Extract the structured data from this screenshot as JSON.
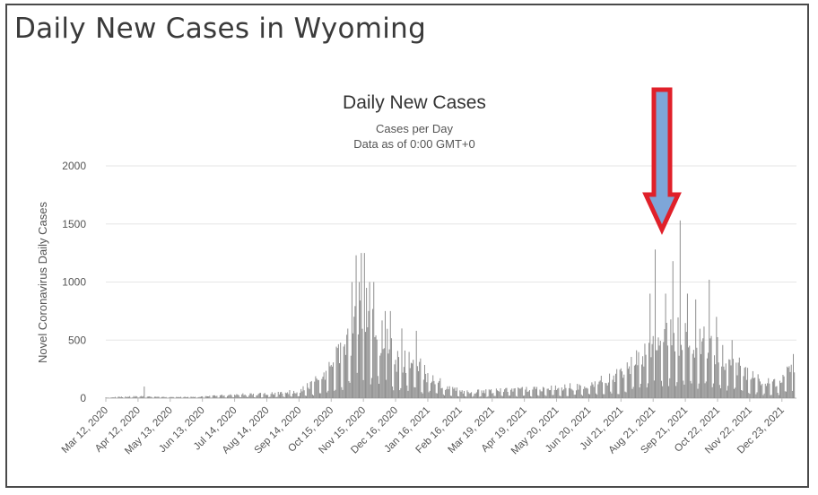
{
  "page": {
    "title": "Daily New Cases in Wyoming"
  },
  "chart_data": {
    "type": "bar",
    "title": "Daily New Cases",
    "subtitle_lines": [
      "Cases per Day",
      "Data as of 0:00 GMT+0"
    ],
    "ylabel": "Novel Coronavirus Daily Cases",
    "xlabel": "",
    "ylim": [
      0,
      2000
    ],
    "yticks": [
      0,
      500,
      1000,
      1500,
      2000
    ],
    "grid": true,
    "legend": "none",
    "bar_color": "#8c8c8c",
    "arrow_fill": "#7ea6d8",
    "arrow_stroke": "#e0202a",
    "x_tick_labels": [
      "Mar 12, 2020",
      "Apr 12, 2020",
      "May 13, 2020",
      "Jun 13, 2020",
      "Jul 14, 2020",
      "Aug 14, 2020",
      "Sep 14, 2020",
      "Oct 15, 2020",
      "Nov 15, 2020",
      "Dec 16, 2020",
      "Jan 16, 2021",
      "Feb 16, 2021",
      "Mar 19, 2021",
      "Apr 19, 2021",
      "May 20, 2021",
      "Jun 20, 2021",
      "Jul 21, 2021",
      "Aug 21, 2021",
      "Sep 21, 2021",
      "Oct 22, 2021",
      "Nov 22, 2021",
      "Dec 23, 2021"
    ],
    "trend": [
      [
        "Mar 12, 2020",
        5
      ],
      [
        "Apr 1, 2020",
        12
      ],
      [
        "Apr 12, 2020",
        15
      ],
      [
        "May 13, 2020",
        8
      ],
      [
        "Jun 13, 2020",
        12
      ],
      [
        "Jul 14, 2020",
        30
      ],
      [
        "Aug 14, 2020",
        35
      ],
      [
        "Sep 14, 2020",
        60
      ],
      [
        "Oct 1, 2020",
        150
      ],
      [
        "Oct 15, 2020",
        260
      ],
      [
        "Nov 1, 2020",
        500
      ],
      [
        "Nov 10, 2020",
        700
      ],
      [
        "Nov 20, 2020",
        750
      ],
      [
        "Dec 1, 2020",
        550
      ],
      [
        "Dec 16, 2020",
        350
      ],
      [
        "Jan 1, 2021",
        320
      ],
      [
        "Jan 16, 2021",
        200
      ],
      [
        "Feb 1, 2021",
        110
      ],
      [
        "Feb 16, 2021",
        60
      ],
      [
        "Mar 19, 2021",
        60
      ],
      [
        "Apr 19, 2021",
        75
      ],
      [
        "May 20, 2021",
        85
      ],
      [
        "Jun 20, 2021",
        110
      ],
      [
        "Jul 21, 2021",
        200
      ],
      [
        "Aug 5, 2021",
        350
      ],
      [
        "Aug 21, 2021",
        480
      ],
      [
        "Sep 5, 2021",
        560
      ],
      [
        "Sep 21, 2021",
        560
      ],
      [
        "Oct 5, 2021",
        480
      ],
      [
        "Oct 22, 2021",
        400
      ],
      [
        "Nov 8, 2021",
        300
      ],
      [
        "Nov 22, 2021",
        200
      ],
      [
        "Dec 8, 2021",
        140
      ],
      [
        "Dec 23, 2021",
        150
      ],
      [
        "Jan 4, 2022",
        300
      ]
    ],
    "spikes": [
      [
        "Apr 18, 2020",
        100
      ],
      [
        "Nov 8, 2020",
        1230
      ],
      [
        "Nov 11, 2020",
        1000
      ],
      [
        "Nov 13, 2020",
        1250
      ],
      [
        "Nov 16, 2020",
        1250
      ],
      [
        "Nov 18, 2020",
        950
      ],
      [
        "Nov 4, 2020",
        1000
      ],
      [
        "Nov 21, 2020",
        1000
      ],
      [
        "Nov 25, 2020",
        1000
      ],
      [
        "Dec 6, 2020",
        750
      ],
      [
        "Dec 11, 2020",
        750
      ],
      [
        "Dec 22, 2020",
        600
      ],
      [
        "Jan 5, 2021",
        580
      ],
      [
        "Aug 23, 2021",
        1280
      ],
      [
        "Aug 18, 2021",
        900
      ],
      [
        "Sep 2, 2021",
        900
      ],
      [
        "Sep 9, 2021",
        1180
      ],
      [
        "Sep 16, 2021",
        1530
      ],
      [
        "Sep 23, 2021",
        900
      ],
      [
        "Oct 1, 2021",
        850
      ],
      [
        "Oct 14, 2021",
        1020
      ],
      [
        "Oct 21, 2021",
        700
      ],
      [
        "Nov 5, 2021",
        500
      ],
      [
        "Dec 21, 2021",
        150
      ],
      [
        "Jan 3, 2022",
        380
      ]
    ]
  }
}
